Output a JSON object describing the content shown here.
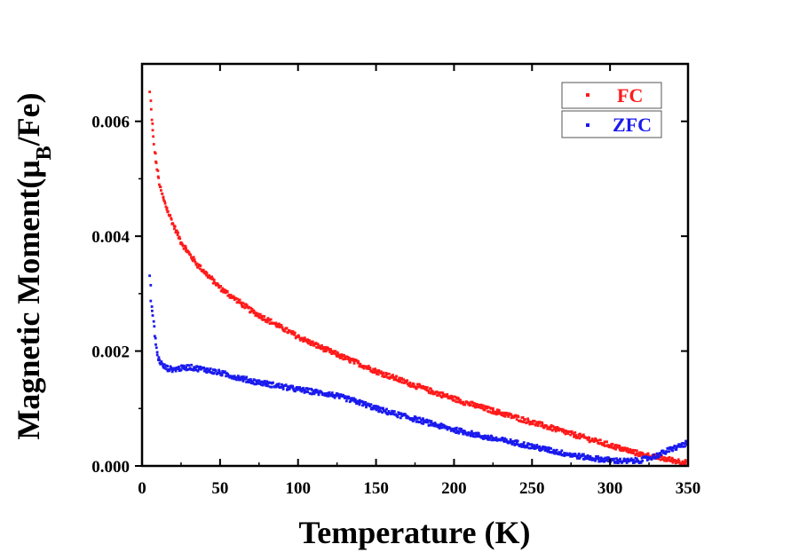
{
  "chart_data": {
    "type": "scatter",
    "xlabel": "Temperature (K)",
    "ylabel": {
      "main": "Magnetic Moment(μ",
      "sub": "B",
      "tail": "/Fe)"
    },
    "xlim": [
      0,
      350
    ],
    "ylim": [
      0,
      0.007
    ],
    "xticks": [
      0,
      50,
      100,
      150,
      200,
      250,
      300,
      350
    ],
    "xtick_labels": [
      "0",
      "50",
      "100",
      "150",
      "200",
      "250",
      "300",
      "350"
    ],
    "yticks": [
      0,
      0.002,
      0.004,
      0.006
    ],
    "ytick_labels": [
      "0.000",
      "0.002",
      "0.004",
      "0.006"
    ],
    "legend_position": "top-right",
    "grid": false,
    "series": [
      {
        "name": "FC",
        "color": "#ff1a1a",
        "points": [
          [
            5,
            0.0065
          ],
          [
            6,
            0.0061
          ],
          [
            7,
            0.0058
          ],
          [
            8,
            0.0055
          ],
          [
            10,
            0.0051
          ],
          [
            12,
            0.0048
          ],
          [
            15,
            0.00455
          ],
          [
            20,
            0.0042
          ],
          [
            25,
            0.0039
          ],
          [
            30,
            0.0037
          ],
          [
            35,
            0.00352
          ],
          [
            40,
            0.00338
          ],
          [
            50,
            0.0031
          ],
          [
            60,
            0.0029
          ],
          [
            70,
            0.0027
          ],
          [
            80,
            0.00255
          ],
          [
            90,
            0.0024
          ],
          [
            100,
            0.00225
          ],
          [
            110,
            0.00212
          ],
          [
            120,
            0.002
          ],
          [
            130,
            0.00188
          ],
          [
            140,
            0.00177
          ],
          [
            150,
            0.00165
          ],
          [
            160,
            0.00155
          ],
          [
            170,
            0.00145
          ],
          [
            180,
            0.00135
          ],
          [
            190,
            0.00126
          ],
          [
            200,
            0.00117
          ],
          [
            210,
            0.00108
          ],
          [
            220,
            0.001
          ],
          [
            230,
            0.00092
          ],
          [
            240,
            0.00084
          ],
          [
            250,
            0.00076
          ],
          [
            260,
            0.00068
          ],
          [
            270,
            0.0006
          ],
          [
            280,
            0.00052
          ],
          [
            290,
            0.00044
          ],
          [
            300,
            0.00036
          ],
          [
            310,
            0.00028
          ],
          [
            320,
            0.0002
          ],
          [
            330,
            0.00015
          ],
          [
            340,
            0.0001
          ],
          [
            350,
            5e-05
          ]
        ]
      },
      {
        "name": "ZFC",
        "color": "#1a1aee",
        "points": [
          [
            5,
            0.0033
          ],
          [
            6,
            0.0028
          ],
          [
            7,
            0.0026
          ],
          [
            8,
            0.0023
          ],
          [
            9,
            0.0021
          ],
          [
            10,
            0.0019
          ],
          [
            11,
            0.00185
          ],
          [
            13,
            0.00175
          ],
          [
            16,
            0.0017
          ],
          [
            20,
            0.00168
          ],
          [
            25,
            0.0017
          ],
          [
            30,
            0.00172
          ],
          [
            35,
            0.0017
          ],
          [
            40,
            0.00168
          ],
          [
            50,
            0.00162
          ],
          [
            60,
            0.00155
          ],
          [
            70,
            0.00148
          ],
          [
            80,
            0.00143
          ],
          [
            90,
            0.00138
          ],
          [
            100,
            0.00133
          ],
          [
            110,
            0.00129
          ],
          [
            120,
            0.00125
          ],
          [
            130,
            0.00118
          ],
          [
            140,
            0.0011
          ],
          [
            150,
            0.001
          ],
          [
            160,
            0.00092
          ],
          [
            170,
            0.00085
          ],
          [
            180,
            0.00078
          ],
          [
            190,
            0.0007
          ],
          [
            200,
            0.00063
          ],
          [
            210,
            0.00057
          ],
          [
            220,
            0.0005
          ],
          [
            230,
            0.00045
          ],
          [
            240,
            0.0004
          ],
          [
            250,
            0.00034
          ],
          [
            260,
            0.00028
          ],
          [
            270,
            0.00022
          ],
          [
            280,
            0.00017
          ],
          [
            290,
            0.00013
          ],
          [
            300,
            0.0001
          ],
          [
            310,
            8e-05
          ],
          [
            320,
            0.0001
          ],
          [
            330,
            0.00018
          ],
          [
            340,
            0.0003
          ],
          [
            350,
            0.0004
          ]
        ]
      }
    ]
  }
}
